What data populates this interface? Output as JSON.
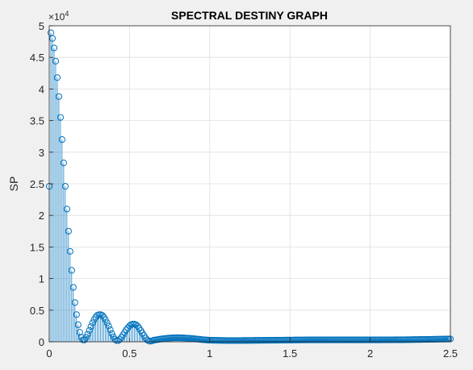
{
  "chart_data": {
    "type": "stem",
    "title": "SPECTRAL DESTINY GRAPH",
    "xlabel": "",
    "ylabel": "SP",
    "xlim": [
      0,
      2.5
    ],
    "ylim": [
      0,
      50000
    ],
    "xticks": [
      0,
      0.5,
      1,
      1.5,
      2,
      2.5
    ],
    "xtick_labels": [
      "0",
      "0.5",
      "1",
      "1.5",
      "2",
      "2.5"
    ],
    "yticks": [
      0,
      5000,
      10000,
      15000,
      20000,
      25000,
      30000,
      35000,
      40000,
      45000,
      50000
    ],
    "ytick_labels": [
      "0",
      "0.5",
      "1",
      "1.5",
      "2",
      "2.5",
      "3",
      "3.5",
      "4",
      "4.5",
      "5"
    ],
    "y_exponent_label": "×10",
    "y_exponent_power": "4",
    "grid": true,
    "marker": "open-circle",
    "color": "#0072bd",
    "x_step": 0.01,
    "x_end": 2.5,
    "series": [
      {
        "envelope_description_points": [
          [
            0.0,
            24600
          ],
          [
            0.01,
            48900
          ],
          [
            0.02,
            48000
          ],
          [
            0.03,
            46500
          ],
          [
            0.04,
            44400
          ],
          [
            0.05,
            41800
          ],
          [
            0.06,
            38800
          ],
          [
            0.07,
            35500
          ],
          [
            0.08,
            32000
          ],
          [
            0.09,
            28300
          ],
          [
            0.1,
            24600
          ],
          [
            0.11,
            21000
          ],
          [
            0.12,
            17500
          ],
          [
            0.13,
            14300
          ],
          [
            0.14,
            11300
          ],
          [
            0.15,
            8600
          ],
          [
            0.16,
            6200
          ],
          [
            0.17,
            4300
          ],
          [
            0.18,
            2700
          ],
          [
            0.19,
            1500
          ],
          [
            0.2,
            700
          ],
          [
            0.21,
            300
          ],
          [
            0.22,
            300
          ],
          [
            0.23,
            700
          ],
          [
            0.24,
            1200
          ],
          [
            0.25,
            1800
          ],
          [
            0.26,
            2400
          ],
          [
            0.27,
            3000
          ],
          [
            0.28,
            3500
          ],
          [
            0.29,
            3900
          ],
          [
            0.3,
            4200
          ],
          [
            0.31,
            4300
          ],
          [
            0.32,
            4300
          ],
          [
            0.33,
            4200
          ],
          [
            0.34,
            3900
          ],
          [
            0.35,
            3500
          ],
          [
            0.36,
            3000
          ],
          [
            0.37,
            2500
          ],
          [
            0.38,
            1900
          ],
          [
            0.39,
            1300
          ],
          [
            0.4,
            800
          ],
          [
            0.41,
            400
          ],
          [
            0.42,
            200
          ],
          [
            0.43,
            200
          ],
          [
            0.44,
            400
          ],
          [
            0.45,
            700
          ],
          [
            0.46,
            1100
          ],
          [
            0.47,
            1500
          ],
          [
            0.48,
            1900
          ],
          [
            0.49,
            2200
          ],
          [
            0.5,
            2500
          ],
          [
            0.51,
            2700
          ],
          [
            0.52,
            2800
          ],
          [
            0.53,
            2800
          ],
          [
            0.54,
            2700
          ],
          [
            0.55,
            2500
          ],
          [
            0.56,
            2200
          ],
          [
            0.57,
            1800
          ],
          [
            0.58,
            1400
          ],
          [
            0.59,
            1000
          ],
          [
            0.6,
            600
          ],
          [
            0.61,
            300
          ],
          [
            0.62,
            150
          ],
          [
            0.63,
            100
          ],
          [
            0.64,
            150
          ],
          [
            0.65,
            250
          ],
          [
            0.7,
            450
          ],
          [
            0.75,
            600
          ],
          [
            0.8,
            650
          ],
          [
            0.85,
            600
          ],
          [
            0.9,
            500
          ],
          [
            0.95,
            350
          ],
          [
            1.0,
            250
          ],
          [
            1.1,
            200
          ],
          [
            1.2,
            200
          ],
          [
            1.4,
            250
          ],
          [
            1.6,
            300
          ],
          [
            1.8,
            300
          ],
          [
            2.0,
            300
          ],
          [
            2.2,
            320
          ],
          [
            2.4,
            400
          ],
          [
            2.5,
            450
          ]
        ]
      }
    ]
  }
}
